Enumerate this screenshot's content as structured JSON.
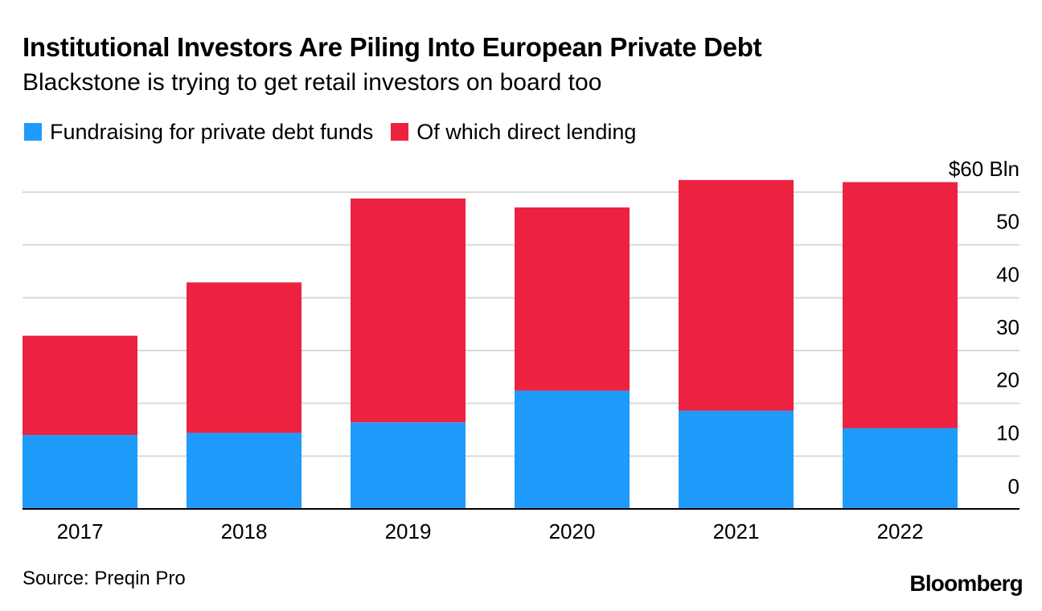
{
  "header": {
    "title": "Institutional Investors Are Piling Into European Private Debt",
    "subtitle": "Blackstone is trying to get retail investors on board too"
  },
  "legend": [
    {
      "label": "Fundraising for private debt funds",
      "color": "#1e9bfb"
    },
    {
      "label": "Of which direct lending",
      "color": "#ec2240"
    }
  ],
  "chart_data": {
    "type": "bar",
    "stacked": true,
    "categories": [
      "2017",
      "2018",
      "2019",
      "2020",
      "2021",
      "2022"
    ],
    "series": [
      {
        "name": "Fundraising for private debt funds",
        "color": "#1e9bfb",
        "values": [
          14,
          14.4,
          16.4,
          22.4,
          18.6,
          15.3
        ]
      },
      {
        "name": "Of which direct lending",
        "color": "#ec2240",
        "values": [
          18.8,
          28.5,
          42.4,
          34.7,
          43.7,
          46.6
        ]
      }
    ],
    "y_ticks": [
      {
        "value": 0,
        "label": "0"
      },
      {
        "value": 10,
        "label": "10"
      },
      {
        "value": 20,
        "label": "20"
      },
      {
        "value": 30,
        "label": "30"
      },
      {
        "value": 40,
        "label": "40"
      },
      {
        "value": 50,
        "label": "50"
      },
      {
        "value": 60,
        "label": "$60 Bln"
      }
    ],
    "ylim": [
      0,
      60
    ],
    "ylabel": "",
    "xlabel": "",
    "grid": true,
    "axis_side": "right"
  },
  "footer": {
    "source": "Source: Preqin Pro",
    "brand": "Bloomberg"
  }
}
